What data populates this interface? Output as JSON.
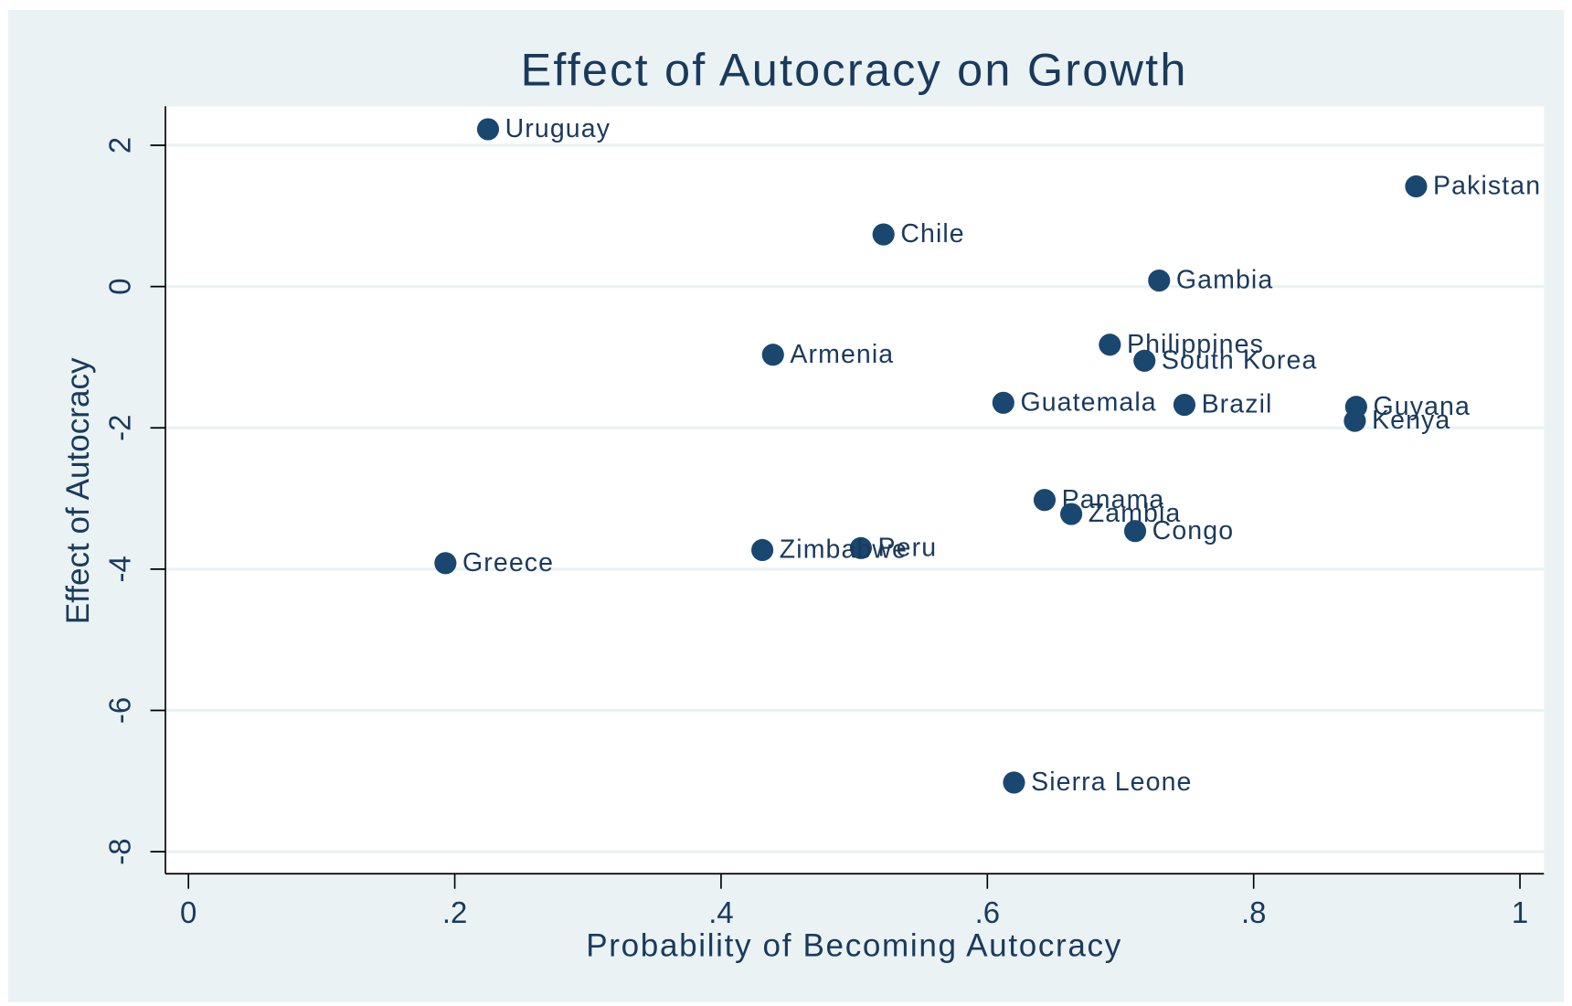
{
  "chart_data": {
    "type": "scatter",
    "title": "Effect of Autocracy on Growth",
    "x_label": "Probability of Becoming Autocracy",
    "y_label": "Effect of Autocracy",
    "point_labels": [
      "Uruguay",
      "Pakistan",
      "Chile",
      "Gambia",
      "Armenia",
      "Philippines",
      "South Korea",
      "Guatemala",
      "Brazil",
      "Guyana",
      "Kenya",
      "Panama",
      "Zambia",
      "Congo",
      "Peru",
      "Zimbabwe",
      "Greece",
      "Sierra Leone"
    ],
    "x": [
      0.225,
      0.922,
      0.522,
      0.729,
      0.439,
      0.692,
      0.718,
      0.612,
      0.748,
      0.877,
      0.876,
      0.643,
      0.663,
      0.711,
      0.505,
      0.431,
      0.193,
      0.62
    ],
    "values": [
      2.227,
      1.418,
      0.738,
      0.085,
      -0.965,
      -0.823,
      -1.05,
      -1.645,
      -1.674,
      -1.702,
      -1.901,
      -3.021,
      -3.22,
      -3.461,
      -3.702,
      -3.73,
      -3.915,
      -7.021
    ],
    "color": "#1a476f",
    "xlim": [
      -0.0173,
      1.018
    ],
    "ylim": [
      -8.312,
      2.553
    ],
    "xticks": [
      0,
      {
        "value": 0.2,
        "label": ".2"
      },
      {
        "value": 0.4,
        "label": ".4"
      },
      {
        "value": 0.6,
        "label": ".6"
      },
      {
        "value": 0.8,
        "label": ".8"
      },
      1
    ],
    "yticks": [
      -8,
      -6,
      -4,
      -2,
      0,
      2
    ],
    "grid": true
  }
}
